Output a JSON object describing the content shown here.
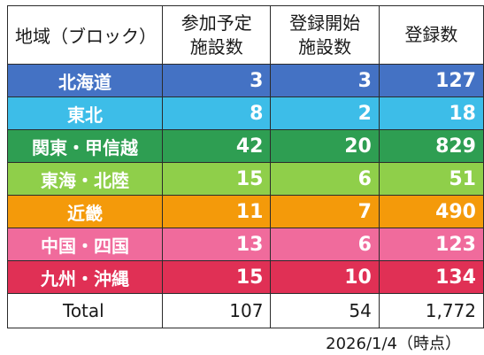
{
  "table": {
    "headers": [
      "地域（ブロック）",
      "参加予定\n施設数",
      "登録開始\n施設数",
      "登録数"
    ],
    "rows": [
      {
        "region": "北海道",
        "planned": "3",
        "started": "3",
        "registered": "127",
        "color": "#4472c4"
      },
      {
        "region": "東北",
        "planned": "8",
        "started": "2",
        "registered": "18",
        "color": "#3dbde8"
      },
      {
        "region": "関東・甲信越",
        "planned": "42",
        "started": "20",
        "registered": "829",
        "color": "#2e9e52"
      },
      {
        "region": "東海・北陸",
        "planned": "15",
        "started": "6",
        "registered": "51",
        "color": "#8fcf4a"
      },
      {
        "region": "近畿",
        "planned": "11",
        "started": "7",
        "registered": "490",
        "color": "#f49a0a"
      },
      {
        "region": "中国・四国",
        "planned": "13",
        "started": "6",
        "registered": "123",
        "color": "#f06b9c"
      },
      {
        "region": "九州・沖縄",
        "planned": "15",
        "started": "10",
        "registered": "134",
        "color": "#e03055"
      }
    ],
    "total": {
      "label": "Total",
      "planned": "107",
      "started": "54",
      "registered": "1,772"
    }
  },
  "timestamp": "2026/1/4（時点）"
}
